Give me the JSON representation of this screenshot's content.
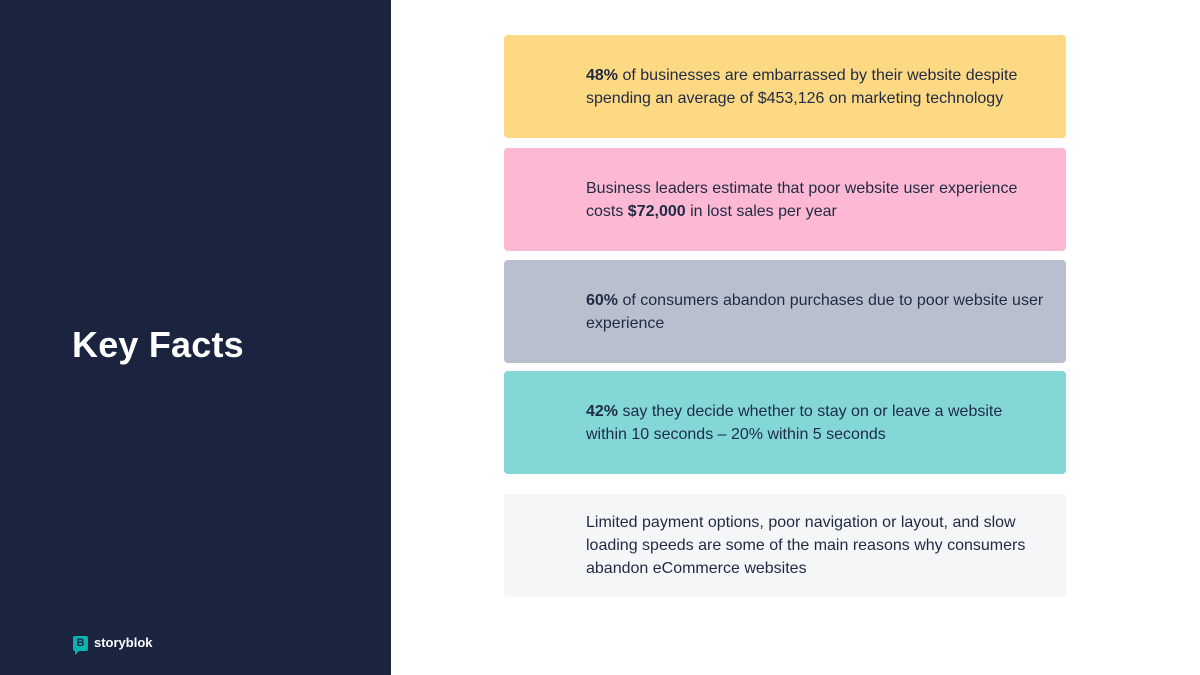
{
  "title": "Key Facts",
  "brand": {
    "icon_letter": "B",
    "name": "storyblok"
  },
  "colors": {
    "panel": "#1b243f",
    "accent": "#09b3af"
  },
  "facts": [
    {
      "bold": "48%",
      "text": " of businesses are embarrassed by their website despite spending an average of $453,126 on marketing technology",
      "color": "#fdd984"
    },
    {
      "before": "Business leaders estimate that poor website user experience costs ",
      "bold": "$72,000",
      "after": " in lost sales per year",
      "color": "#fdb8d3"
    },
    {
      "bold": "60%",
      "text": " of consumers abandon purchases due to poor website user experience",
      "color": "#b9c0cd"
    },
    {
      "bold": "42%",
      "text": " say they decide whether to stay on or leave a website within 10 seconds – 20% within 5 seconds",
      "color": "#83d8d6"
    },
    {
      "text": "Limited payment options, poor navigation or layout, and slow loading speeds are some of the main reasons why consumers abandon eCommerce websites",
      "color": "#f5f6f8"
    }
  ]
}
